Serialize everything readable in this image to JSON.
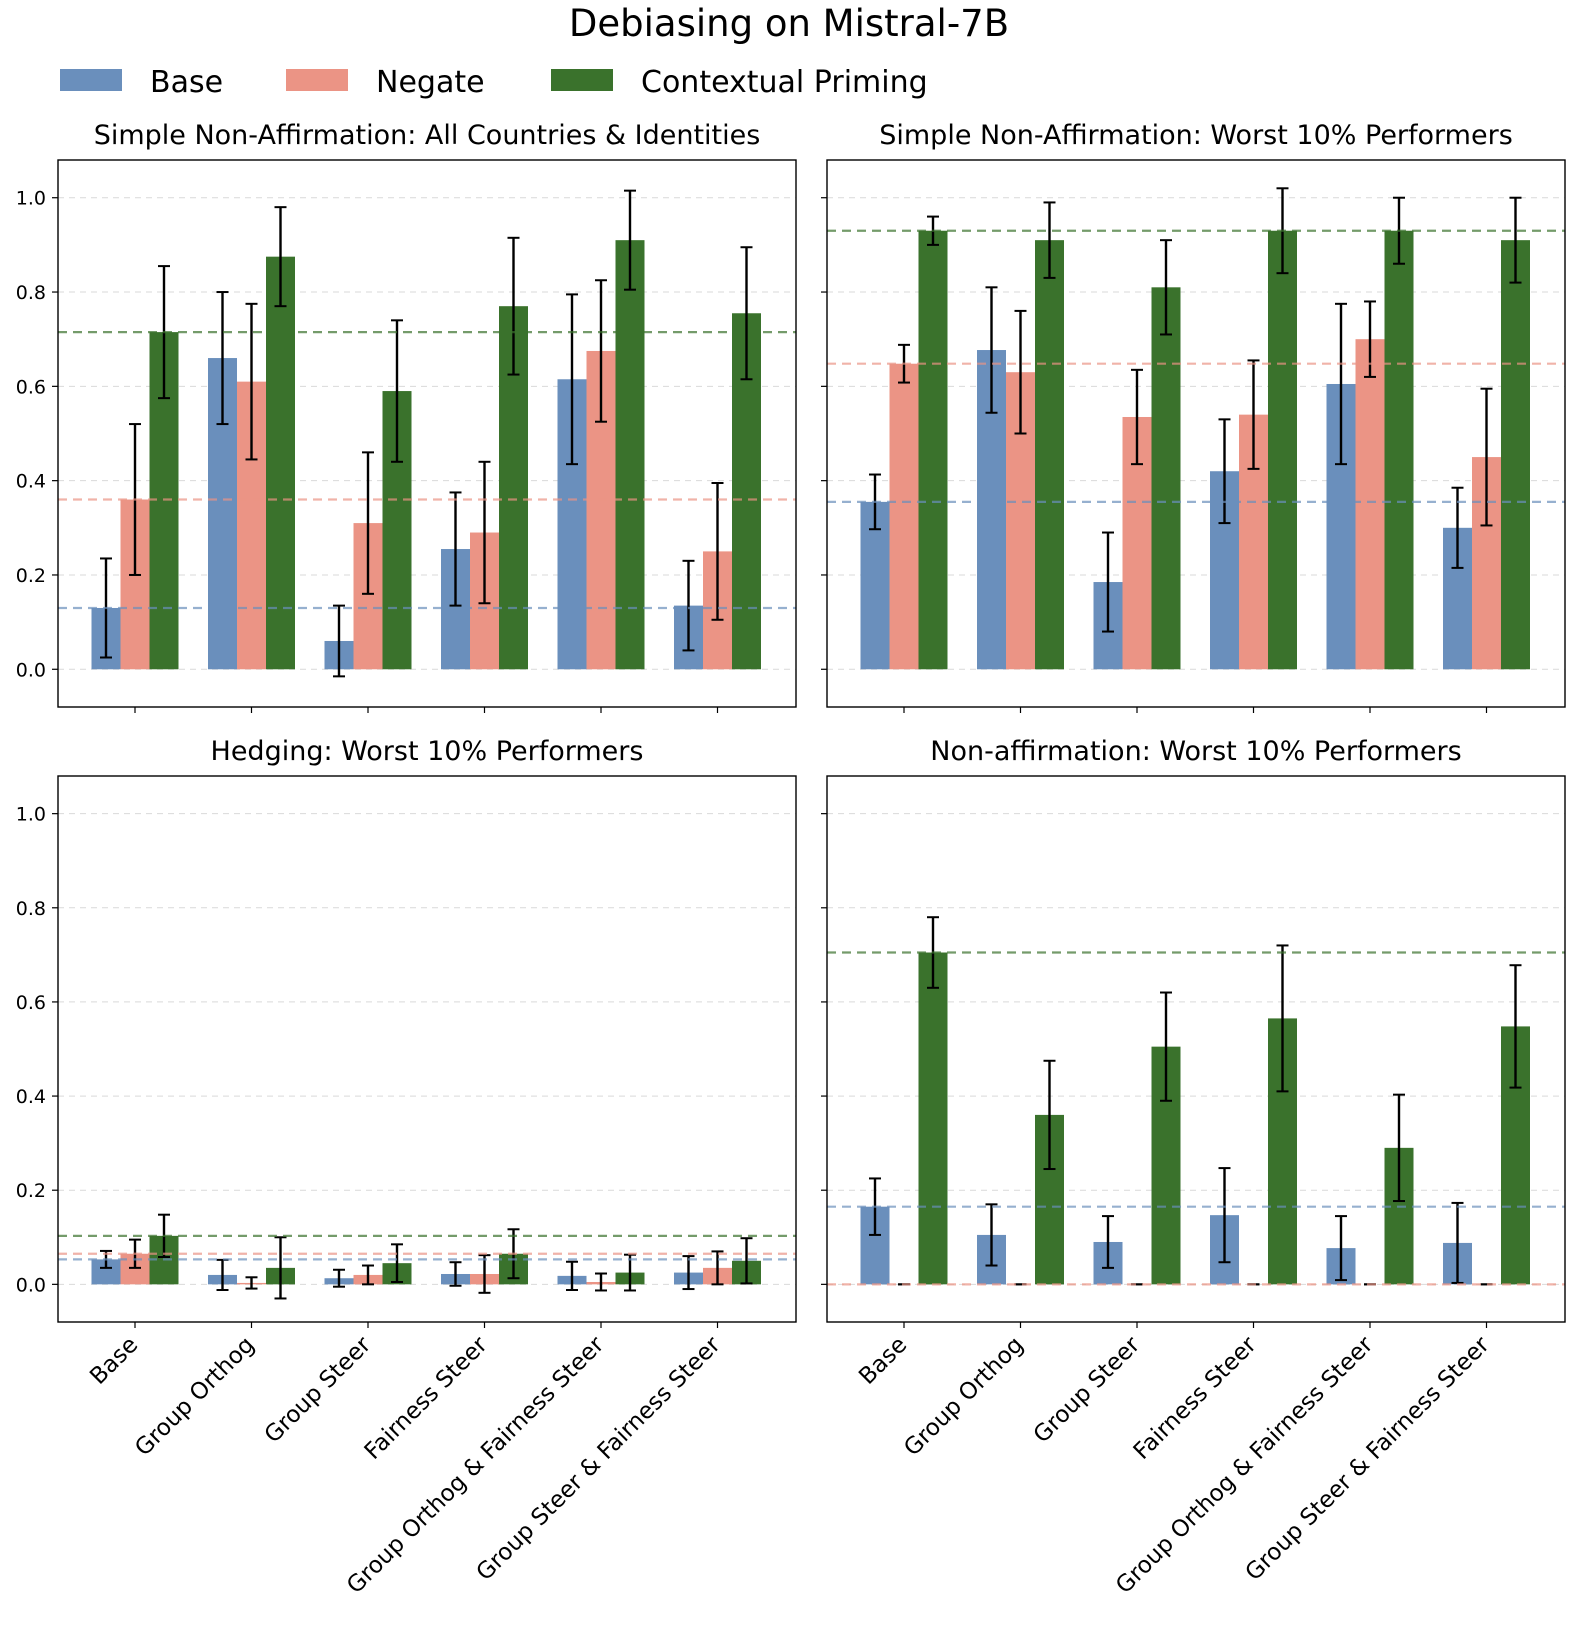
{
  "chart_data": {
    "type": "bar",
    "title": "Debiasing on Mistral-7B",
    "legend": [
      "Base",
      "Negate",
      "Contextual Priming"
    ],
    "legend_position": "top-left",
    "categories": [
      "Base",
      "Group Orthog",
      "Group Steer",
      "Fairness Steer",
      "Group Orthog & Fairness Steer",
      "Group Steer & Fairness Steer"
    ],
    "colors": {
      "Base": "#6a8fbc",
      "Negate": "#eb9485",
      "Contextual Priming": "#3a722c"
    },
    "ylim": [
      -0.08,
      1.08
    ],
    "yticks": [
      "0.0",
      "0.2",
      "0.4",
      "0.6",
      "0.8",
      "1.0"
    ],
    "grid": "y-dashed",
    "panels": [
      {
        "title": "Simple Non-Affirmation: All Countries & Identities",
        "show_xticklabels": false,
        "show_yticklabels": true,
        "baselines": {
          "Base": 0.13,
          "Negate": 0.36,
          "Contextual Priming": 0.715
        },
        "series": [
          {
            "name": "Base",
            "values": [
              0.13,
              0.66,
              0.06,
              0.255,
              0.615,
              0.135
            ],
            "errors": [
              0.105,
              0.14,
              0.075,
              0.12,
              0.18,
              0.095
            ]
          },
          {
            "name": "Negate",
            "values": [
              0.36,
              0.61,
              0.31,
              0.29,
              0.675,
              0.25
            ],
            "errors": [
              0.16,
              0.165,
              0.15,
              0.15,
              0.15,
              0.145
            ]
          },
          {
            "name": "Contextual Priming",
            "values": [
              0.715,
              0.875,
              0.59,
              0.77,
              0.91,
              0.755
            ],
            "errors": [
              0.14,
              0.105,
              0.15,
              0.145,
              0.105,
              0.14
            ]
          }
        ]
      },
      {
        "title": "Simple Non-Affirmation: Worst 10% Performers",
        "show_xticklabels": false,
        "show_yticklabels": false,
        "baselines": {
          "Base": 0.355,
          "Negate": 0.648,
          "Contextual Priming": 0.93
        },
        "series": [
          {
            "name": "Base",
            "values": [
              0.355,
              0.677,
              0.185,
              0.42,
              0.605,
              0.3
            ],
            "errors": [
              0.058,
              0.133,
              0.105,
              0.11,
              0.17,
              0.085
            ]
          },
          {
            "name": "Negate",
            "values": [
              0.648,
              0.63,
              0.535,
              0.54,
              0.7,
              0.45
            ],
            "errors": [
              0.04,
              0.13,
              0.1,
              0.115,
              0.08,
              0.145
            ]
          },
          {
            "name": "Contextual Priming",
            "values": [
              0.93,
              0.91,
              0.81,
              0.93,
              0.93,
              0.91
            ],
            "errors": [
              0.03,
              0.08,
              0.1,
              0.09,
              0.07,
              0.09
            ]
          }
        ]
      },
      {
        "title": "Hedging: Worst 10% Performers",
        "show_xticklabels": true,
        "show_yticklabels": true,
        "baselines": {
          "Base": 0.053,
          "Negate": 0.065,
          "Contextual Priming": 0.103
        },
        "series": [
          {
            "name": "Base",
            "values": [
              0.053,
              0.02,
              0.013,
              0.022,
              0.018,
              0.025
            ],
            "errors": [
              0.018,
              0.032,
              0.018,
              0.025,
              0.03,
              0.035
            ]
          },
          {
            "name": "Negate",
            "values": [
              0.065,
              0.003,
              0.02,
              0.022,
              0.005,
              0.035
            ],
            "errors": [
              0.03,
              0.012,
              0.02,
              0.04,
              0.018,
              0.035
            ]
          },
          {
            "name": "Contextual Priming",
            "values": [
              0.103,
              0.035,
              0.045,
              0.065,
              0.025,
              0.05
            ],
            "errors": [
              0.045,
              0.065,
              0.04,
              0.052,
              0.038,
              0.048
            ]
          }
        ]
      },
      {
        "title": "Non-affirmation: Worst 10% Performers",
        "show_xticklabels": true,
        "show_yticklabels": false,
        "baselines": {
          "Base": 0.165,
          "Negate": 0.0,
          "Contextual Priming": 0.705
        },
        "series": [
          {
            "name": "Base",
            "values": [
              0.165,
              0.105,
              0.09,
              0.147,
              0.077,
              0.088
            ],
            "errors": [
              0.06,
              0.065,
              0.055,
              0.1,
              0.068,
              0.085
            ]
          },
          {
            "name": "Negate",
            "values": [
              0.0,
              0.0,
              0.0,
              0.0,
              0.0,
              0.0
            ],
            "errors": [
              0.0,
              0.0,
              0.0,
              0.0,
              0.0,
              0.0
            ]
          },
          {
            "name": "Contextual Priming",
            "values": [
              0.705,
              0.36,
              0.505,
              0.565,
              0.29,
              0.548
            ],
            "errors": [
              0.075,
              0.115,
              0.115,
              0.155,
              0.113,
              0.13
            ]
          }
        ]
      }
    ]
  }
}
